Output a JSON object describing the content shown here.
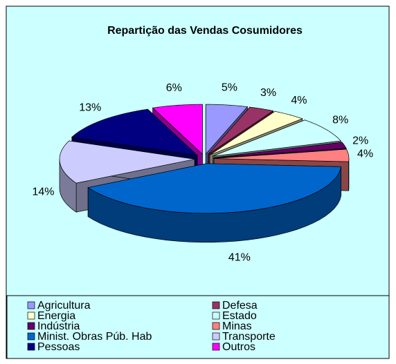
{
  "chart_data": {
    "type": "pie",
    "title": "Repartição das Vendas Cosumidores",
    "categories": [
      "Agricultura",
      "Defesa",
      "Energia",
      "Estado",
      "Indústria",
      "Minas",
      "Minist. Obras Púb. Hab",
      "Transporte",
      "Pessoas",
      "Outros"
    ],
    "values": [
      5,
      3,
      4,
      8,
      2,
      4,
      41,
      14,
      13,
      6
    ],
    "value_labels": [
      "5%",
      "3%",
      "4%",
      "8%",
      "2%",
      "4%",
      "41%",
      "14%",
      "13%",
      "6%"
    ],
    "colors": [
      "#9999ff",
      "#993366",
      "#ffffcc",
      "#ccffff",
      "#660066",
      "#ff8080",
      "#0066cc",
      "#ccccff",
      "#000080",
      "#ff00ff"
    ]
  }
}
